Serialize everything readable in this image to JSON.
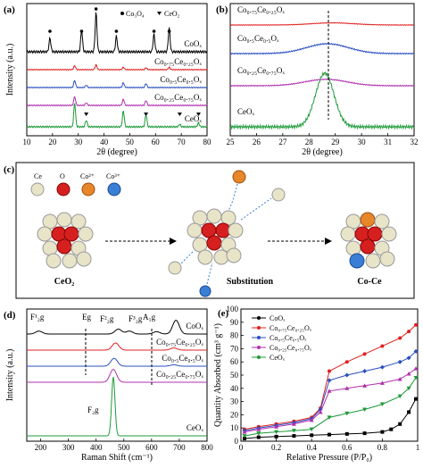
{
  "panels": {
    "a": {
      "letter": "(a)",
      "ylabel": "Intensity (a.u.)",
      "xlabel": "2θ (degree)",
      "legend": [
        "Co₃O₄",
        "CeO₂"
      ]
    },
    "b": {
      "letter": "(b)",
      "xlabel": "2θ (degree)"
    },
    "c": {
      "letter": "(c)",
      "legend": [
        "Ce",
        "O",
        "Co²⁺",
        "Co³⁺"
      ],
      "labels": [
        "CeO₂",
        "Substitution",
        "Co-Ce"
      ]
    },
    "d": {
      "letter": "(d)",
      "ylabel": "Intensity (a.u.)",
      "xlabel": "Raman Shift (cm⁻¹)",
      "peak_labels": [
        "F¹₂g",
        "Eg",
        "F²₂g",
        "F³₂g",
        "A₁g",
        "F₂g"
      ]
    },
    "e": {
      "letter": "(e)",
      "ylabel": "Quantity Absorbed (cm³ g⁻¹)",
      "xlabel": "Relative Pressure (P/P₀)"
    }
  },
  "colors": {
    "CoOx": "#000000",
    "Co0.75Ce0.25Ox": "#e02020",
    "Co0.5Ce0.5Ox": "#2a4fc0",
    "Co0.25Ce0.75Ox": "#b030b0",
    "CeOx": "#1f9a3a"
  },
  "chart_data": [
    {
      "panel": "a",
      "type": "line",
      "xlabel": "2θ (degree)",
      "ylabel": "Intensity (a.u.)",
      "xlim": [
        10,
        80
      ],
      "xticks": [
        10,
        20,
        30,
        40,
        50,
        60,
        70,
        80
      ],
      "series": [
        {
          "name": "CoOₓ",
          "peaks": [
            [
              19,
              0.35
            ],
            [
              31.3,
              0.55
            ],
            [
              36.9,
              1.0
            ],
            [
              44.8,
              0.4
            ],
            [
              59.4,
              0.45
            ],
            [
              65.3,
              0.6
            ]
          ]
        },
        {
          "name": "Co₀.₇₅Ce₀.₂₅Oₓ",
          "peaks": [
            [
              28.6,
              0.25
            ],
            [
              36.9,
              0.3
            ],
            [
              47.5,
              0.15
            ],
            [
              56.3,
              0.12
            ],
            [
              65.3,
              0.15
            ]
          ]
        },
        {
          "name": "Co₀.₅Ce₀.₅Oₓ",
          "peaks": [
            [
              28.6,
              0.45
            ],
            [
              33.1,
              0.15
            ],
            [
              47.5,
              0.3
            ],
            [
              56.3,
              0.25
            ]
          ]
        },
        {
          "name": "Co₀.₂₅Ce₀.₇₅Oₓ",
          "peaks": [
            [
              28.6,
              0.5
            ],
            [
              33.1,
              0.15
            ],
            [
              47.5,
              0.35
            ],
            [
              56.3,
              0.28
            ]
          ]
        },
        {
          "name": "CeOₓ",
          "peaks": [
            [
              28.6,
              0.9
            ],
            [
              33.1,
              0.25
            ],
            [
              47.5,
              0.6
            ],
            [
              56.3,
              0.45
            ],
            [
              69.4,
              0.1
            ],
            [
              76.7,
              0.15
            ]
          ]
        }
      ]
    },
    {
      "panel": "b",
      "type": "line",
      "xlabel": "2θ (degree)",
      "xlim": [
        25,
        32
      ],
      "xticks": [
        25,
        26,
        27,
        28,
        29,
        30,
        31,
        32
      ],
      "series": [
        {
          "name": "Co₀.₇₅Ce₀.₂₅Oₓ",
          "center": 28.9,
          "height": 0.2
        },
        {
          "name": "Co₀.₅Ce₀.₅Oₓ",
          "center": 28.7,
          "height": 0.5
        },
        {
          "name": "Co₀.₂₅Ce₀.₇₅Oₓ",
          "center": 28.65,
          "height": 0.4
        },
        {
          "name": "CeOₓ",
          "center": 28.6,
          "height": 1.0
        }
      ]
    },
    {
      "panel": "d",
      "type": "line",
      "xlabel": "Raman Shift (cm⁻¹)",
      "ylabel": "Intensity (a.u.)",
      "xlim": [
        150,
        800
      ],
      "xticks": [
        200,
        300,
        400,
        500,
        600,
        700,
        800
      ],
      "series": [
        {
          "name": "CoOₓ",
          "peaks": [
            [
              194,
              0.15
            ],
            [
              480,
              0.25
            ],
            [
              520,
              0.15
            ],
            [
              618,
              0.12
            ],
            [
              688,
              0.7
            ]
          ]
        },
        {
          "name": "Co₀.₇₅Ce₀.₂₅Oₓ",
          "peaks": [
            [
              470,
              0.5
            ],
            [
              680,
              0.15
            ]
          ]
        },
        {
          "name": "Co₀.₅Ce₀.₅Oₓ",
          "peaks": [
            [
              465,
              0.55
            ],
            [
              680,
              0.1
            ]
          ]
        },
        {
          "name": "Co₀.₂₅Ce₀.₇₅Oₓ",
          "peaks": [
            [
              462,
              0.8
            ]
          ]
        },
        {
          "name": "CeOₓ",
          "peaks": [
            [
              462,
              3.0
            ]
          ]
        }
      ]
    },
    {
      "panel": "e",
      "type": "line",
      "xlabel": "Relative Pressure (P/P₀)",
      "ylabel": "Quantity Absorbed (cm³ g⁻¹)",
      "xlim": [
        0.0,
        1.0
      ],
      "ylim": [
        0,
        100
      ],
      "xticks": [
        0.0,
        0.2,
        0.4,
        0.6,
        0.8,
        1.0
      ],
      "yticks": [
        0,
        10,
        20,
        30,
        40,
        50,
        60,
        70,
        80,
        90,
        100
      ],
      "series": [
        {
          "name": "CoOₓ",
          "x": [
            0.02,
            0.1,
            0.2,
            0.3,
            0.4,
            0.5,
            0.6,
            0.7,
            0.8,
            0.85,
            0.9,
            0.95,
            0.99
          ],
          "y": [
            2,
            3,
            3.5,
            4,
            4.5,
            5,
            5.5,
            6,
            7,
            9,
            13,
            22,
            32
          ]
        },
        {
          "name": "Co₀.₇₅Ce₀.₂₅Oₓ",
          "x": [
            0.02,
            0.1,
            0.2,
            0.3,
            0.4,
            0.45,
            0.5,
            0.6,
            0.7,
            0.8,
            0.9,
            0.95,
            0.99
          ],
          "y": [
            9,
            11,
            13,
            15,
            18,
            25,
            53,
            60,
            66,
            72,
            78,
            83,
            88
          ]
        },
        {
          "name": "Co₀.₅Ce₀.₅Oₓ",
          "x": [
            0.02,
            0.1,
            0.2,
            0.3,
            0.4,
            0.45,
            0.5,
            0.6,
            0.7,
            0.8,
            0.9,
            0.95,
            0.99
          ],
          "y": [
            8,
            10,
            12,
            14,
            17,
            24,
            46,
            50,
            53,
            56,
            60,
            63,
            68
          ]
        },
        {
          "name": "Co₀.₂₅Ce₀.₇₅Oₓ",
          "x": [
            0.02,
            0.1,
            0.2,
            0.3,
            0.4,
            0.45,
            0.5,
            0.6,
            0.7,
            0.8,
            0.9,
            0.95,
            0.99
          ],
          "y": [
            7,
            9,
            11,
            13,
            16,
            22,
            38,
            40,
            42,
            44,
            47,
            51,
            55
          ]
        },
        {
          "name": "CeOₓ",
          "x": [
            0.02,
            0.1,
            0.2,
            0.3,
            0.4,
            0.5,
            0.6,
            0.7,
            0.8,
            0.9,
            0.95,
            0.99
          ],
          "y": [
            4,
            6,
            7,
            8,
            9,
            18,
            21,
            24,
            28,
            34,
            40,
            48
          ]
        }
      ]
    }
  ]
}
